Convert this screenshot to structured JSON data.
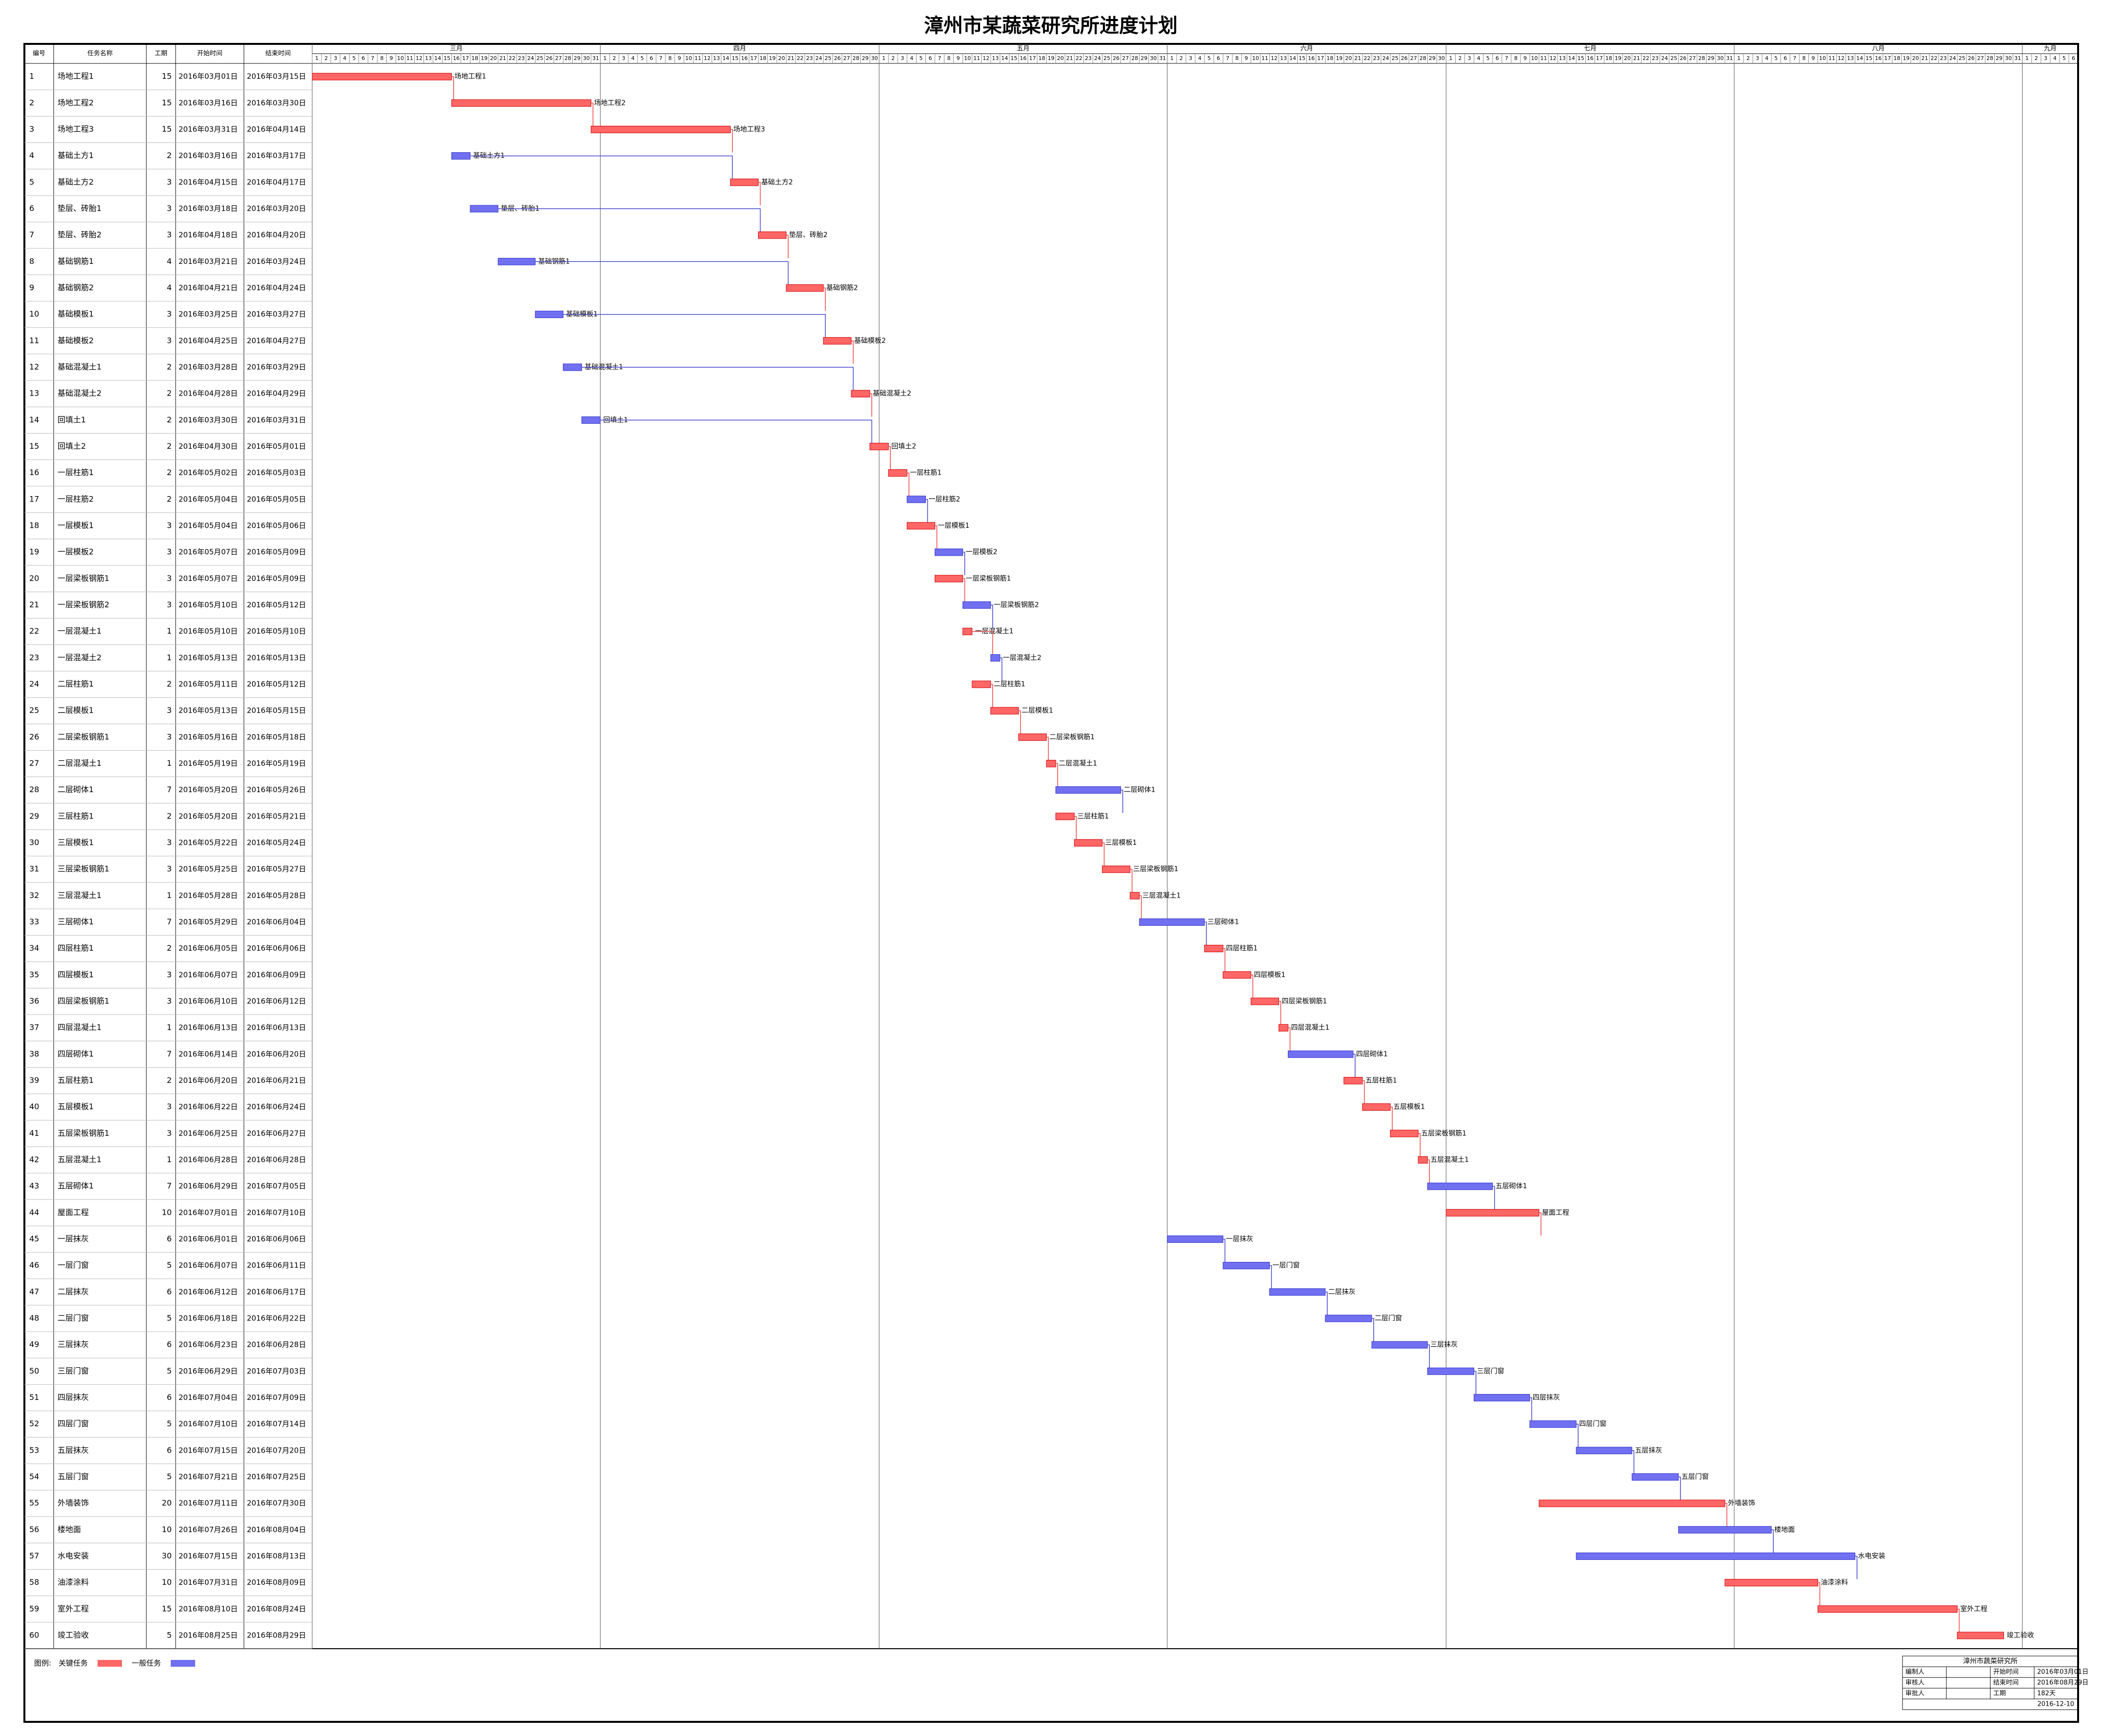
{
  "title": "漳州市某蔬菜研究所进度计划",
  "columns": [
    "编号",
    "任务名称",
    "工期",
    "开始时间",
    "结束时间"
  ],
  "colors": {
    "critical": "#ff6666",
    "normal": "#7070f0"
  },
  "months": [
    {
      "label": "三月",
      "days": [
        1,
        2,
        3,
        4,
        5,
        6,
        7,
        8,
        9,
        10,
        11,
        12,
        13,
        14,
        15,
        16,
        17,
        18,
        19,
        20,
        21,
        22,
        23,
        24,
        25,
        26,
        27,
        28,
        29,
        30,
        31
      ]
    },
    {
      "label": "四月",
      "days": [
        1,
        2,
        3,
        4,
        5,
        6,
        7,
        8,
        9,
        10,
        11,
        12,
        13,
        14,
        15,
        16,
        17,
        18,
        19,
        20,
        21,
        22,
        23,
        24,
        25,
        26,
        27,
        28,
        29,
        30
      ]
    },
    {
      "label": "五月",
      "days": [
        1,
        2,
        3,
        4,
        5,
        6,
        7,
        8,
        9,
        10,
        11,
        12,
        13,
        14,
        15,
        16,
        17,
        18,
        19,
        20,
        21,
        22,
        23,
        24,
        25,
        26,
        27,
        28,
        29,
        30,
        31
      ]
    },
    {
      "label": "六月",
      "days": [
        1,
        2,
        3,
        4,
        5,
        6,
        7,
        8,
        9,
        10,
        11,
        12,
        13,
        14,
        15,
        16,
        17,
        18,
        19,
        20,
        21,
        22,
        23,
        24,
        25,
        26,
        27,
        28,
        29,
        30
      ]
    },
    {
      "label": "七月",
      "days": [
        1,
        2,
        3,
        4,
        5,
        6,
        7,
        8,
        9,
        10,
        11,
        12,
        13,
        14,
        15,
        16,
        17,
        18,
        19,
        20,
        21,
        22,
        23,
        24,
        25,
        26,
        27,
        28,
        29,
        30,
        31
      ]
    },
    {
      "label": "八月",
      "days": [
        1,
        2,
        3,
        4,
        5,
        6,
        7,
        8,
        9,
        10,
        11,
        12,
        13,
        14,
        15,
        16,
        17,
        18,
        19,
        20,
        21,
        22,
        23,
        24,
        25,
        26,
        27,
        28,
        29,
        30,
        31
      ]
    },
    {
      "label": "九月",
      "days": [
        1,
        2,
        3,
        4,
        5,
        6
      ]
    }
  ],
  "table": {
    "rows": [
      [
        1,
        "场地工程1",
        15,
        "2016年03月01日",
        "2016年03月15日",
        true
      ],
      [
        2,
        "场地工程2",
        15,
        "2016年03月16日",
        "2016年03月30日",
        true
      ],
      [
        3,
        "场地工程3",
        15,
        "2016年03月31日",
        "2016年04月14日",
        true
      ],
      [
        4,
        "基础土方1",
        2,
        "2016年03月16日",
        "2016年03月17日",
        false
      ],
      [
        5,
        "基础土方2",
        3,
        "2016年04月15日",
        "2016年04月17日",
        true
      ],
      [
        6,
        "垫层、砖胎1",
        3,
        "2016年03月18日",
        "2016年03月20日",
        false
      ],
      [
        7,
        "垫层、砖胎2",
        3,
        "2016年04月18日",
        "2016年04月20日",
        true
      ],
      [
        8,
        "基础钢筋1",
        4,
        "2016年03月21日",
        "2016年03月24日",
        false
      ],
      [
        9,
        "基础钢筋2",
        4,
        "2016年04月21日",
        "2016年04月24日",
        true
      ],
      [
        10,
        "基础模板1",
        3,
        "2016年03月25日",
        "2016年03月27日",
        false
      ],
      [
        11,
        "基础模板2",
        3,
        "2016年04月25日",
        "2016年04月27日",
        true
      ],
      [
        12,
        "基础混凝土1",
        2,
        "2016年03月28日",
        "2016年03月29日",
        false
      ],
      [
        13,
        "基础混凝土2",
        2,
        "2016年04月28日",
        "2016年04月29日",
        true
      ],
      [
        14,
        "回填土1",
        2,
        "2016年03月30日",
        "2016年03月31日",
        false
      ],
      [
        15,
        "回填土2",
        2,
        "2016年04月30日",
        "2016年05月01日",
        true
      ],
      [
        16,
        "一层柱筋1",
        2,
        "2016年05月02日",
        "2016年05月03日",
        true
      ],
      [
        17,
        "一层柱筋2",
        2,
        "2016年05月04日",
        "2016年05月05日",
        false
      ],
      [
        18,
        "一层模板1",
        3,
        "2016年05月04日",
        "2016年05月06日",
        true
      ],
      [
        19,
        "一层模板2",
        3,
        "2016年05月07日",
        "2016年05月09日",
        false
      ],
      [
        20,
        "一层梁板钢筋1",
        3,
        "2016年05月07日",
        "2016年05月09日",
        true
      ],
      [
        21,
        "一层梁板钢筋2",
        3,
        "2016年05月10日",
        "2016年05月12日",
        false
      ],
      [
        22,
        "一层混凝土1",
        1,
        "2016年05月10日",
        "2016年05月10日",
        true
      ],
      [
        23,
        "一层混凝土2",
        1,
        "2016年05月13日",
        "2016年05月13日",
        false
      ],
      [
        24,
        "二层柱筋1",
        2,
        "2016年05月11日",
        "2016年05月12日",
        true
      ],
      [
        25,
        "二层模板1",
        3,
        "2016年05月13日",
        "2016年05月15日",
        true
      ],
      [
        26,
        "二层梁板钢筋1",
        3,
        "2016年05月16日",
        "2016年05月18日",
        true
      ],
      [
        27,
        "二层混凝土1",
        1,
        "2016年05月19日",
        "2016年05月19日",
        true
      ],
      [
        28,
        "二层砌体1",
        7,
        "2016年05月20日",
        "2016年05月26日",
        false
      ],
      [
        29,
        "三层柱筋1",
        2,
        "2016年05月20日",
        "2016年05月21日",
        true
      ],
      [
        30,
        "三层模板1",
        3,
        "2016年05月22日",
        "2016年05月24日",
        true
      ],
      [
        31,
        "三层梁板钢筋1",
        3,
        "2016年05月25日",
        "2016年05月27日",
        true
      ],
      [
        32,
        "三层混凝土1",
        1,
        "2016年05月28日",
        "2016年05月28日",
        true
      ],
      [
        33,
        "三层砌体1",
        7,
        "2016年05月29日",
        "2016年06月04日",
        false
      ],
      [
        34,
        "四层柱筋1",
        2,
        "2016年06月05日",
        "2016年06月06日",
        true
      ],
      [
        35,
        "四层模板1",
        3,
        "2016年06月07日",
        "2016年06月09日",
        true
      ],
      [
        36,
        "四层梁板钢筋1",
        3,
        "2016年06月10日",
        "2016年06月12日",
        true
      ],
      [
        37,
        "四层混凝土1",
        1,
        "2016年06月13日",
        "2016年06月13日",
        true
      ],
      [
        38,
        "四层砌体1",
        7,
        "2016年06月14日",
        "2016年06月20日",
        false
      ],
      [
        39,
        "五层柱筋1",
        2,
        "2016年06月20日",
        "2016年06月21日",
        true
      ],
      [
        40,
        "五层模板1",
        3,
        "2016年06月22日",
        "2016年06月24日",
        true
      ],
      [
        41,
        "五层梁板钢筋1",
        3,
        "2016年06月25日",
        "2016年06月27日",
        true
      ],
      [
        42,
        "五层混凝土1",
        1,
        "2016年06月28日",
        "2016年06月28日",
        true
      ],
      [
        43,
        "五层砌体1",
        7,
        "2016年06月29日",
        "2016年07月05日",
        false
      ],
      [
        44,
        "屋面工程",
        10,
        "2016年07月01日",
        "2016年07月10日",
        true
      ],
      [
        45,
        "一层抹灰",
        6,
        "2016年06月01日",
        "2016年06月06日",
        false
      ],
      [
        46,
        "一层门窗",
        5,
        "2016年06月07日",
        "2016年06月11日",
        false
      ],
      [
        47,
        "二层抹灰",
        6,
        "2016年06月12日",
        "2016年06月17日",
        false
      ],
      [
        48,
        "二层门窗",
        5,
        "2016年06月18日",
        "2016年06月22日",
        false
      ],
      [
        49,
        "三层抹灰",
        6,
        "2016年06月23日",
        "2016年06月28日",
        false
      ],
      [
        50,
        "三层门窗",
        5,
        "2016年06月29日",
        "2016年07月03日",
        false
      ],
      [
        51,
        "四层抹灰",
        6,
        "2016年07月04日",
        "2016年07月09日",
        false
      ],
      [
        52,
        "四层门窗",
        5,
        "2016年07月10日",
        "2016年07月14日",
        false
      ],
      [
        53,
        "五层抹灰",
        6,
        "2016年07月15日",
        "2016年07月20日",
        false
      ],
      [
        54,
        "五层门窗",
        5,
        "2016年07月21日",
        "2016年07月25日",
        false
      ],
      [
        55,
        "外墙装饰",
        20,
        "2016年07月11日",
        "2016年07月30日",
        true
      ],
      [
        56,
        "楼地面",
        10,
        "2016年07月26日",
        "2016年08月04日",
        false
      ],
      [
        57,
        "水电安装",
        30,
        "2016年07月15日",
        "2016年08月13日",
        false
      ],
      [
        58,
        "油漆涂料",
        10,
        "2016年07月31日",
        "2016年08月09日",
        true
      ],
      [
        59,
        "室外工程",
        15,
        "2016年08月10日",
        "2016年08月24日",
        true
      ],
      [
        60,
        "竣工验收",
        5,
        "2016年08月25日",
        "2016年08月29日",
        true
      ]
    ]
  },
  "legend": {
    "label": "图例:",
    "critical": "关键任务",
    "normal": "一般任务"
  },
  "info": {
    "org": "漳州市蔬菜研究所",
    "rows": [
      [
        "编制人",
        "",
        "开始时间",
        "2016年03月01日"
      ],
      [
        "审核人",
        "",
        "结束时间",
        "2016年08月29日"
      ],
      [
        "审批人",
        "",
        "工期",
        "182天"
      ]
    ],
    "date": "2016-12-10"
  }
}
